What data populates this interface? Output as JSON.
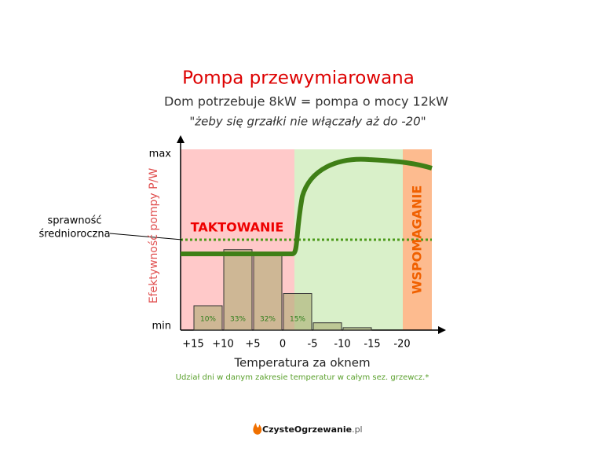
{
  "chart_data": {
    "type": "bar",
    "title": "Pompa przewymiarowana",
    "subtitle": "Dom potrzebuje 8kW = pompa o mocy 12kW",
    "quote": "\"żeby się grzałki nie włączały aż do -20\"",
    "y_axis_label": "Efektywność pompy P/W",
    "y_max_label": "max",
    "y_min_label": "min",
    "x_axis_label": "Temperatura za oknem",
    "note": "Udział dni w danym zakresie temperatur w całym sez. grzewcz.*",
    "cycling_label": "TAKTOWANIE",
    "support_label": "WSPOMAGANIE",
    "avg_efficiency_label": [
      "sprawność",
      "średnioroczna"
    ],
    "x_labels": [
      "+15",
      "+10",
      "+5",
      "0",
      "-5",
      "-10",
      "-15",
      "-20"
    ],
    "values": [
      10,
      33,
      32,
      15,
      3,
      1
    ],
    "value_labels": [
      "10%",
      "33%",
      "32%",
      "15%",
      null,
      null
    ],
    "color": "#a6a86a"
  },
  "footer": {
    "brand": "CzysteOgrzewanie",
    "domain": ".pl"
  }
}
